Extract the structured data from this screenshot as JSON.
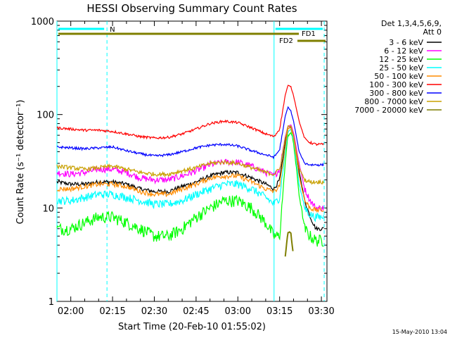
{
  "chart_data": {
    "type": "line",
    "title": "HESSI Observing Summary Count Rates",
    "xlabel": "Start Time (20-Feb-10 01:55:02)",
    "ylabel": "Count Rate (s⁻¹ detector⁻¹)",
    "yscale": "log",
    "ylim": [
      1,
      1000
    ],
    "xlim": [
      "01:55:02",
      "03:32:00"
    ],
    "xticks": [
      "02:00",
      "02:15",
      "02:30",
      "02:45",
      "03:00",
      "03:15",
      "03:30"
    ],
    "yticks": [
      "1",
      "10",
      "100",
      "1000"
    ],
    "legend_header": [
      "Det 1,3,4,5,6,9,",
      "Att 0"
    ],
    "legend_position": "right",
    "x": [
      "01:55",
      "02:00",
      "02:05",
      "02:10",
      "02:15",
      "02:20",
      "02:25",
      "02:30",
      "02:35",
      "02:40",
      "02:45",
      "02:50",
      "02:55",
      "03:00",
      "03:05",
      "03:10",
      "03:13",
      "03:15",
      "03:17",
      "03:18",
      "03:19",
      "03:20",
      "03:22",
      "03:24",
      "03:26",
      "03:28",
      "03:30",
      "03:31"
    ],
    "series": [
      {
        "name": "3 - 6 keV",
        "color": "#000000",
        "values": [
          19,
          18,
          18,
          19,
          19,
          18,
          16,
          15,
          15,
          17,
          19,
          22,
          24,
          24,
          21,
          18,
          16,
          20,
          50,
          70,
          75,
          60,
          25,
          12,
          8,
          6,
          6,
          6
        ]
      },
      {
        "name": "6 - 12 keV",
        "color": "#ff00ff",
        "values": [
          24,
          23,
          24,
          26,
          26,
          24,
          21,
          20,
          20,
          22,
          25,
          29,
          31,
          31,
          28,
          24,
          22,
          26,
          58,
          75,
          78,
          65,
          30,
          16,
          12,
          10,
          10,
          10
        ]
      },
      {
        "name": "12 - 25 keV",
        "color": "#00ff00",
        "values": [
          6,
          6,
          7,
          8,
          8,
          7,
          6,
          5,
          5,
          6,
          8,
          10,
          12,
          12,
          10,
          7,
          5,
          5,
          30,
          60,
          65,
          50,
          14,
          6,
          5,
          4.5,
          4.5,
          4.5
        ]
      },
      {
        "name": "25 - 50 keV",
        "color": "#00ffff",
        "values": [
          12,
          12,
          13,
          14,
          14,
          13,
          12,
          11,
          11,
          12,
          14,
          16,
          18,
          18,
          16,
          13,
          11,
          13,
          40,
          65,
          70,
          55,
          18,
          10,
          8.5,
          8,
          8,
          8
        ]
      },
      {
        "name": "50 - 100 keV",
        "color": "#ff8c00",
        "values": [
          16,
          16,
          17,
          18,
          18,
          17,
          15,
          14,
          14,
          16,
          18,
          21,
          22,
          22,
          19,
          16,
          15,
          17,
          45,
          70,
          72,
          58,
          22,
          12,
          10,
          9.5,
          9.5,
          9.5
        ]
      },
      {
        "name": "100 - 300 keV",
        "color": "#ff0000",
        "values": [
          72,
          70,
          68,
          68,
          66,
          62,
          58,
          56,
          57,
          62,
          70,
          80,
          85,
          82,
          72,
          62,
          58,
          70,
          160,
          205,
          200,
          160,
          85,
          55,
          50,
          48,
          48,
          48
        ]
      },
      {
        "name": "300 - 800 keV",
        "color": "#0000ff",
        "values": [
          45,
          44,
          43,
          44,
          45,
          41,
          38,
          36,
          37,
          40,
          44,
          47,
          48,
          46,
          41,
          37,
          35,
          42,
          95,
          120,
          110,
          85,
          40,
          30,
          29,
          29,
          29,
          29
        ]
      },
      {
        "name": "800 - 7000 keV",
        "color": "#c8a000",
        "values": [
          28,
          27,
          26,
          27,
          28,
          26,
          24,
          23,
          23,
          25,
          27,
          30,
          31,
          30,
          27,
          24,
          23,
          26,
          55,
          75,
          75,
          60,
          27,
          20,
          19,
          19,
          19,
          19
        ]
      },
      {
        "name": "7000 - 20000 keV",
        "color": "#7f7f00",
        "values": [
          null,
          null,
          null,
          null,
          null,
          null,
          null,
          null,
          null,
          null,
          null,
          null,
          null,
          null,
          null,
          null,
          null,
          null,
          3,
          5.5,
          5.5,
          3,
          null,
          null,
          null,
          null,
          null,
          null
        ]
      }
    ],
    "annotations": {
      "night_label": "N",
      "flare_labels": [
        "FD1",
        "FD2"
      ],
      "timestamp": "15-May-2010 13:04"
    }
  }
}
